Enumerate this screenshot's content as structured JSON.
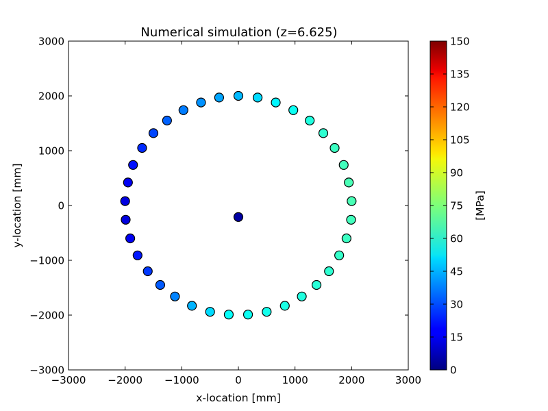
{
  "chart_data": {
    "type": "scatter",
    "title": "Numerical simulation (z=6.625)",
    "xlabel": "x-location [mm]",
    "ylabel": "y-location [mm]",
    "xlim": [
      -3000,
      3000
    ],
    "ylim": [
      -3000,
      3000
    ],
    "xticks": [
      "−3000",
      "−2000",
      "−1000",
      "0",
      "1000",
      "2000",
      "3000"
    ],
    "yticks": [
      "−3000",
      "−2000",
      "−1000",
      "0",
      "1000",
      "2000",
      "3000"
    ],
    "grid": false,
    "colormap": "jet",
    "colorbar": {
      "label": "[MPa]",
      "range": [
        0,
        150
      ],
      "ticks": [
        "0",
        "15",
        "30",
        "45",
        "60",
        "75",
        "90",
        "105",
        "120",
        "135",
        "150"
      ]
    },
    "points": [
      {
        "x": 0,
        "y": -210,
        "value": 5
      },
      {
        "x": 0,
        "y": 2000,
        "value": 46
      },
      {
        "x": 340,
        "y": 1970,
        "value": 51
      },
      {
        "x": 660,
        "y": 1880,
        "value": 55
      },
      {
        "x": 970,
        "y": 1740,
        "value": 58
      },
      {
        "x": 1260,
        "y": 1550,
        "value": 61
      },
      {
        "x": 1500,
        "y": 1320,
        "value": 63
      },
      {
        "x": 1700,
        "y": 1050,
        "value": 65
      },
      {
        "x": 1860,
        "y": 740,
        "value": 66
      },
      {
        "x": 1950,
        "y": 420,
        "value": 67
      },
      {
        "x": 2000,
        "y": 80,
        "value": 67
      },
      {
        "x": 1990,
        "y": -260,
        "value": 66
      },
      {
        "x": 1910,
        "y": -600,
        "value": 65
      },
      {
        "x": 1780,
        "y": -910,
        "value": 64
      },
      {
        "x": 1600,
        "y": -1200,
        "value": 63
      },
      {
        "x": 1380,
        "y": -1450,
        "value": 62
      },
      {
        "x": 1120,
        "y": -1660,
        "value": 61
      },
      {
        "x": 820,
        "y": -1830,
        "value": 60
      },
      {
        "x": 500,
        "y": -1940,
        "value": 59
      },
      {
        "x": 170,
        "y": -1990,
        "value": 58
      },
      {
        "x": -170,
        "y": -1990,
        "value": 57
      },
      {
        "x": -500,
        "y": -1940,
        "value": 51
      },
      {
        "x": -820,
        "y": -1830,
        "value": 45
      },
      {
        "x": -1120,
        "y": -1660,
        "value": 38
      },
      {
        "x": -1380,
        "y": -1450,
        "value": 32
      },
      {
        "x": -1600,
        "y": -1200,
        "value": 27
      },
      {
        "x": -1780,
        "y": -910,
        "value": 22
      },
      {
        "x": -1910,
        "y": -600,
        "value": 17
      },
      {
        "x": -1990,
        "y": -260,
        "value": 14
      },
      {
        "x": -2000,
        "y": 80,
        "value": 14
      },
      {
        "x": -1950,
        "y": 420,
        "value": 17
      },
      {
        "x": -1860,
        "y": 740,
        "value": 21
      },
      {
        "x": -1700,
        "y": 1050,
        "value": 25
      },
      {
        "x": -1500,
        "y": 1320,
        "value": 29
      },
      {
        "x": -1260,
        "y": 1550,
        "value": 33
      },
      {
        "x": -970,
        "y": 1740,
        "value": 37
      },
      {
        "x": -660,
        "y": 1880,
        "value": 40
      },
      {
        "x": -340,
        "y": 1970,
        "value": 43
      }
    ]
  }
}
